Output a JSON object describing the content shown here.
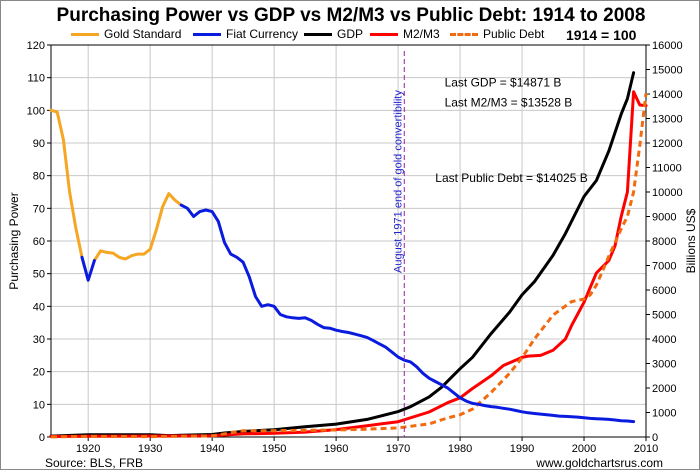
{
  "chart_data": {
    "type": "line",
    "title": "Purchasing Power vs GDP vs M2/M3 vs Public Debt: 1914 to 2008",
    "base_note": "1914 = 100",
    "ylabel_left": "Purchasing Power",
    "ylabel_right": "Billions US$",
    "ylim_left": [
      0,
      120
    ],
    "ylim_right": [
      0,
      16000
    ],
    "xlim": [
      1914,
      2010
    ],
    "x_ticks": [
      1920,
      1930,
      1940,
      1950,
      1960,
      1970,
      1980,
      1990,
      2000,
      2010
    ],
    "y_left_ticks": [
      0,
      10,
      20,
      30,
      40,
      50,
      60,
      70,
      80,
      90,
      100,
      110,
      120
    ],
    "y_right_ticks": [
      0,
      1000,
      2000,
      3000,
      4000,
      5000,
      6000,
      7000,
      8000,
      9000,
      10000,
      11000,
      12000,
      13000,
      14000,
      15000,
      16000
    ],
    "grid": true,
    "legend_position": "top",
    "series": [
      {
        "name": "Gold Standard",
        "axis": "left",
        "color": "#f5a623",
        "style": "solid",
        "segments": [
          [
            [
              1914,
              100
            ],
            [
              1915,
              99.5
            ],
            [
              1916,
              91
            ],
            [
              1917,
              75
            ],
            [
              1918,
              64
            ],
            [
              1919,
              55
            ]
          ],
          [
            [
              1921,
              54
            ],
            [
              1922,
              57
            ],
            [
              1923,
              56.5
            ],
            [
              1924,
              56.3
            ],
            [
              1925,
              55
            ],
            [
              1926,
              54.5
            ],
            [
              1927,
              55.5
            ],
            [
              1928,
              56
            ],
            [
              1929,
              56
            ],
            [
              1930,
              57.5
            ],
            [
              1931,
              63.5
            ],
            [
              1932,
              70.5
            ],
            [
              1933,
              74.5
            ],
            [
              1934,
              72.5
            ],
            [
              1935,
              71
            ]
          ]
        ]
      },
      {
        "name": "Fiat Currency",
        "axis": "left",
        "color": "#0a1be0",
        "style": "solid",
        "segments": [
          [
            [
              1919,
              55
            ],
            [
              1920,
              48
            ],
            [
              1921,
              54
            ]
          ],
          [
            [
              1935,
              71
            ],
            [
              1936,
              70
            ],
            [
              1937,
              67.5
            ],
            [
              1938,
              69
            ],
            [
              1939,
              69.5
            ],
            [
              1940,
              69
            ],
            [
              1941,
              66
            ],
            [
              1942,
              59.5
            ],
            [
              1943,
              56
            ],
            [
              1944,
              55
            ],
            [
              1945,
              53.5
            ],
            [
              1946,
              49
            ],
            [
              1947,
              43
            ],
            [
              1948,
              40
            ],
            [
              1949,
              40.5
            ],
            [
              1950,
              40
            ],
            [
              1951,
              37.5
            ],
            [
              1952,
              36.8
            ],
            [
              1953,
              36.5
            ],
            [
              1954,
              36.3
            ],
            [
              1955,
              36.5
            ],
            [
              1956,
              35.7
            ],
            [
              1957,
              34.5
            ],
            [
              1958,
              33.5
            ],
            [
              1959,
              33.3
            ],
            [
              1960,
              32.7
            ],
            [
              1961,
              32.3
            ],
            [
              1962,
              32
            ],
            [
              1963,
              31.5
            ],
            [
              1964,
              31
            ],
            [
              1965,
              30.5
            ],
            [
              1966,
              29.5
            ],
            [
              1967,
              28.5
            ],
            [
              1968,
              27.5
            ],
            [
              1969,
              26
            ],
            [
              1970,
              24.5
            ],
            [
              1971,
              23.5
            ],
            [
              1972,
              23
            ],
            [
              1973,
              21.5
            ],
            [
              1974,
              19.5
            ],
            [
              1975,
              18
            ],
            [
              1976,
              17
            ],
            [
              1977,
              16
            ],
            [
              1978,
              15
            ],
            [
              1979,
              13.5
            ],
            [
              1980,
              12
            ],
            [
              1981,
              11
            ],
            [
              1982,
              10.3
            ],
            [
              1983,
              10
            ],
            [
              1984,
              9.6
            ],
            [
              1985,
              9.3
            ],
            [
              1986,
              9.1
            ],
            [
              1987,
              8.8
            ],
            [
              1988,
              8.5
            ],
            [
              1989,
              8.1
            ],
            [
              1990,
              7.7
            ],
            [
              1991,
              7.4
            ],
            [
              1992,
              7.2
            ],
            [
              1993,
              7
            ],
            [
              1994,
              6.8
            ],
            [
              1995,
              6.6
            ],
            [
              1996,
              6.4
            ],
            [
              1997,
              6.3
            ],
            [
              1998,
              6.2
            ],
            [
              1999,
              6.1
            ],
            [
              2000,
              5.9
            ],
            [
              2001,
              5.7
            ],
            [
              2002,
              5.6
            ],
            [
              2003,
              5.5
            ],
            [
              2004,
              5.4
            ],
            [
              2005,
              5.2
            ],
            [
              2006,
              5
            ],
            [
              2007,
              4.9
            ],
            [
              2008,
              4.7
            ]
          ]
        ]
      },
      {
        "name": "GDP",
        "axis": "right",
        "color": "#000000",
        "style": "solid",
        "points": [
          [
            1914,
            36
          ],
          [
            1920,
            90
          ],
          [
            1925,
            93
          ],
          [
            1930,
            91
          ],
          [
            1933,
            56
          ],
          [
            1935,
            74
          ],
          [
            1940,
            101
          ],
          [
            1942,
            162
          ],
          [
            1945,
            223
          ],
          [
            1948,
            270
          ],
          [
            1950,
            294
          ],
          [
            1955,
            415
          ],
          [
            1960,
            526
          ],
          [
            1965,
            720
          ],
          [
            1970,
            1038
          ],
          [
            1972,
            1238
          ],
          [
            1975,
            1638
          ],
          [
            1977,
            2030
          ],
          [
            1980,
            2788
          ],
          [
            1982,
            3253
          ],
          [
            1985,
            4220
          ],
          [
            1988,
            5100
          ],
          [
            1990,
            5800
          ],
          [
            1992,
            6340
          ],
          [
            1995,
            7414
          ],
          [
            1997,
            8300
          ],
          [
            2000,
            9817
          ],
          [
            2002,
            10470
          ],
          [
            2004,
            11670
          ],
          [
            2006,
            13180
          ],
          [
            2007,
            13810
          ],
          [
            2008,
            14871
          ]
        ]
      },
      {
        "name": "M2/M3",
        "axis": "right",
        "color": "#ff0000",
        "style": "solid",
        "points": [
          [
            1914,
            20
          ],
          [
            1920,
            30
          ],
          [
            1930,
            40
          ],
          [
            1940,
            55
          ],
          [
            1945,
            127
          ],
          [
            1950,
            150
          ],
          [
            1955,
            200
          ],
          [
            1960,
            300
          ],
          [
            1965,
            460
          ],
          [
            1970,
            626
          ],
          [
            1975,
            1020
          ],
          [
            1978,
            1400
          ],
          [
            1980,
            1600
          ],
          [
            1982,
            1980
          ],
          [
            1985,
            2500
          ],
          [
            1987,
            2920
          ],
          [
            1990,
            3250
          ],
          [
            1991,
            3300
          ],
          [
            1992,
            3320
          ],
          [
            1993,
            3330
          ],
          [
            1995,
            3540
          ],
          [
            1997,
            4000
          ],
          [
            1998,
            4550
          ],
          [
            2000,
            5500
          ],
          [
            2001,
            6100
          ],
          [
            2002,
            6700
          ],
          [
            2004,
            7200
          ],
          [
            2005,
            7800
          ],
          [
            2006,
            9000
          ],
          [
            2007,
            10000
          ],
          [
            2008,
            14090
          ],
          [
            2009,
            13550
          ],
          [
            2010,
            13528
          ]
        ]
      },
      {
        "name": "Public Debt",
        "axis": "right",
        "color": "#f26b0f",
        "style": "dashed",
        "points": [
          [
            1914,
            3
          ],
          [
            1920,
            24
          ],
          [
            1930,
            16
          ],
          [
            1935,
            29
          ],
          [
            1940,
            43
          ],
          [
            1945,
            259
          ],
          [
            1950,
            257
          ],
          [
            1955,
            274
          ],
          [
            1960,
            286
          ],
          [
            1965,
            317
          ],
          [
            1970,
            371
          ],
          [
            1975,
            533
          ],
          [
            1978,
            780
          ],
          [
            1980,
            908
          ],
          [
            1982,
            1140
          ],
          [
            1985,
            1817
          ],
          [
            1988,
            2600
          ],
          [
            1990,
            3233
          ],
          [
            1992,
            4000
          ],
          [
            1995,
            4974
          ],
          [
            1998,
            5526
          ],
          [
            2000,
            5628
          ],
          [
            2001,
            5800
          ],
          [
            2002,
            6200
          ],
          [
            2003,
            6780
          ],
          [
            2004,
            7380
          ],
          [
            2005,
            7930
          ],
          [
            2006,
            8500
          ],
          [
            2007,
            9000
          ],
          [
            2008,
            10000
          ],
          [
            2009,
            11900
          ],
          [
            2010,
            14025
          ]
        ]
      }
    ],
    "annotations": [
      {
        "text": "Last GDP = $14871 B",
        "year": 1977.5,
        "value_right": 14300
      },
      {
        "text": "Last M2/M3 = $13528 B",
        "year": 1977.5,
        "value_right": 13500
      },
      {
        "text": "Last Public Debt = $14025 B",
        "year": 1976,
        "value_right": 10400
      }
    ],
    "vline": {
      "x": 1971,
      "text": "August 1971 end of gold convertibility",
      "color": "#a020a0"
    }
  },
  "source": "Source: BLS, FRB",
  "website": "www.goldchartsrus.com"
}
